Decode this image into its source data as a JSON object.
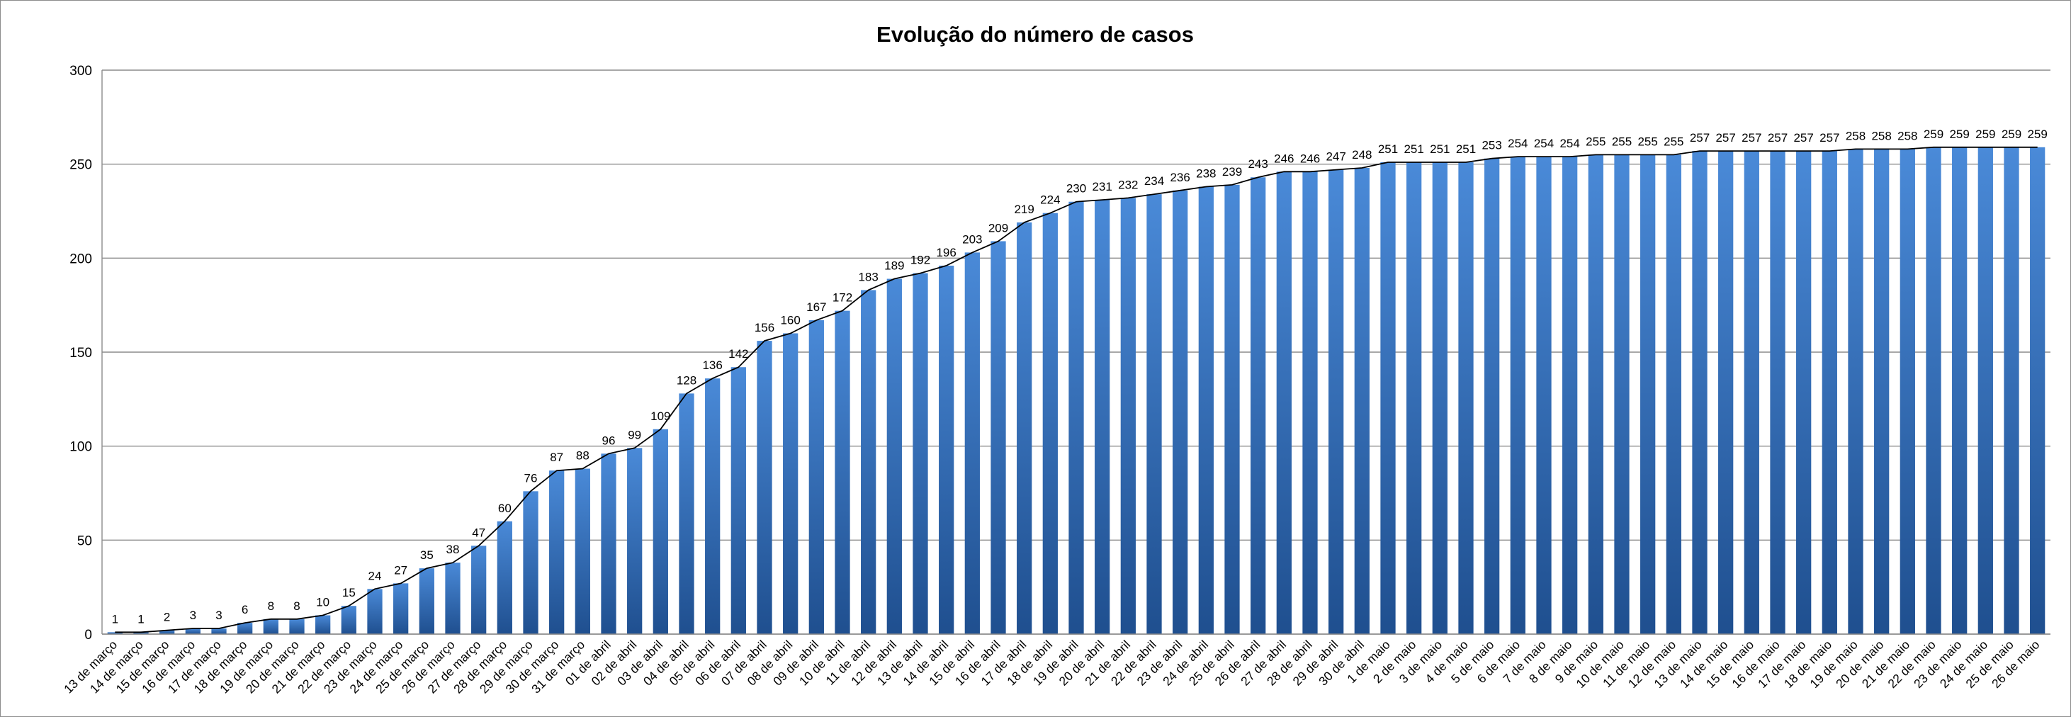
{
  "chart_data": {
    "type": "bar",
    "title": "Evolução do número de casos",
    "xlabel": "",
    "ylabel": "",
    "ylim": [
      0,
      300
    ],
    "yticks": [
      0,
      50,
      100,
      150,
      200,
      250,
      300
    ],
    "grid": true,
    "legend": "none",
    "trendline": true,
    "colors": {
      "bar_top": "#4a8ad8",
      "bar_bottom": "#1f4f8f",
      "line": "#000000",
      "grid": "#8c8c8c"
    },
    "categories": [
      "13 de março",
      "14 de março",
      "15 de março",
      "16 de março",
      "17 de março",
      "18 de março",
      "19 de março",
      "20 de março",
      "21 de março",
      "22 de março",
      "23 de março",
      "24 de março",
      "25 de março",
      "26 de março",
      "27 de março",
      "28 de março",
      "29 de março",
      "30 de março",
      "31 de março",
      "01 de abril",
      "02 de abril",
      "03 de abril",
      "04 de abril",
      "05 de abril",
      "06 de abril",
      "07 de abril",
      "08 de abril",
      "09 de abril",
      "10 de abril",
      "11 de abril",
      "12 de abril",
      "13 de abril",
      "14 de abril",
      "15 de abril",
      "16 de abril",
      "17 de abril",
      "18 de abril",
      "19 de abril",
      "20 de abril",
      "21 de abril",
      "22 de abril",
      "23 de abril",
      "24 de abril",
      "25 de abril",
      "26 de abril",
      "27 de abril",
      "28 de abril",
      "29 de abril",
      "30 de abril",
      "1 de maio",
      "2 de maio",
      "3 de maio",
      "4 de maio",
      "5 de maio",
      "6 de maio",
      "7 de maio",
      "8 de maio",
      "9 de maio",
      "10 de maio",
      "11 de maio",
      "12 de maio",
      "13 de maio",
      "14 de maio",
      "15 de maio",
      "16 de maio",
      "17 de maio",
      "18 de maio",
      "19 de maio",
      "20 de maio",
      "21 de maio",
      "22 de maio",
      "23 de maio",
      "24 de maio",
      "25 de maio",
      "26 de maio"
    ],
    "values": [
      1,
      1,
      2,
      3,
      3,
      6,
      8,
      8,
      10,
      15,
      24,
      27,
      35,
      38,
      47,
      60,
      76,
      87,
      88,
      96,
      99,
      109,
      128,
      136,
      142,
      156,
      160,
      167,
      172,
      183,
      189,
      192,
      196,
      203,
      209,
      219,
      224,
      230,
      231,
      232,
      234,
      236,
      238,
      239,
      243,
      246,
      246,
      247,
      248,
      251,
      251,
      251,
      251,
      253,
      254,
      254,
      254,
      255,
      255,
      255,
      255,
      257,
      257,
      257,
      257,
      257,
      257,
      258,
      258,
      258,
      259,
      259,
      259,
      259,
      259
    ]
  }
}
